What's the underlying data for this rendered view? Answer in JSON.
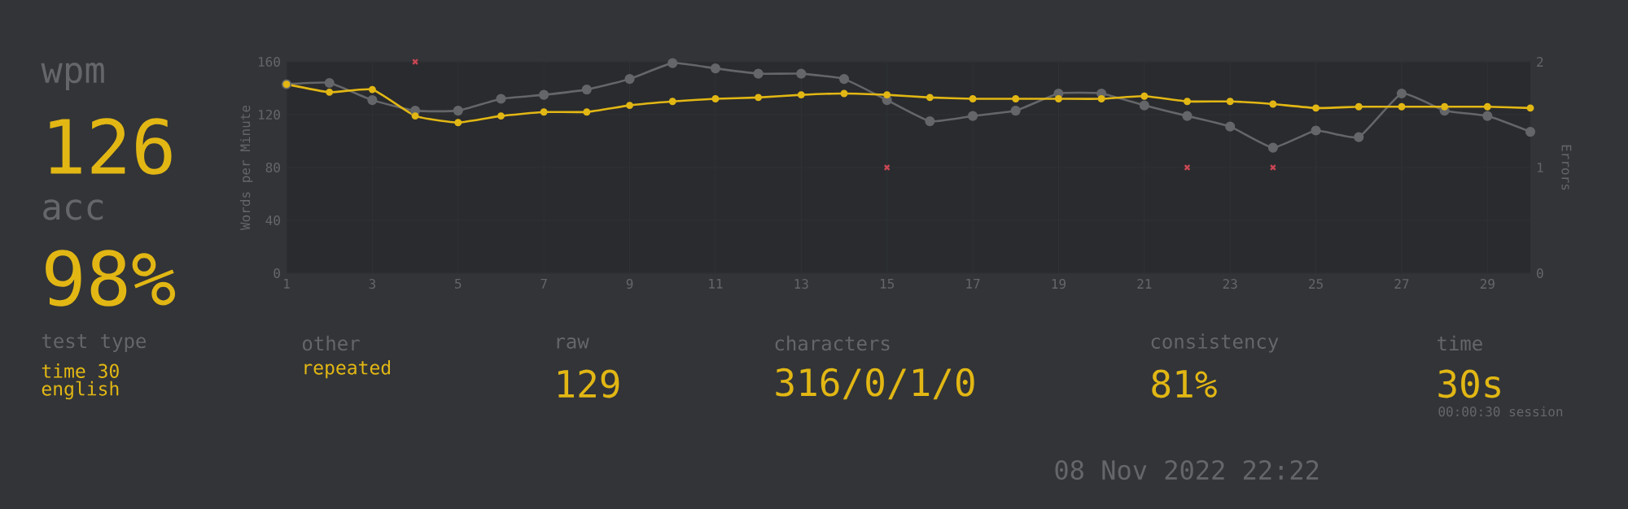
{
  "chart_data": {
    "type": "line",
    "ylabel": "Words per Minute",
    "y2label": "Errors",
    "x": [
      1,
      2,
      3,
      4,
      5,
      6,
      7,
      8,
      9,
      10,
      11,
      12,
      13,
      14,
      15,
      16,
      17,
      18,
      19,
      20,
      21,
      22,
      23,
      24,
      25,
      26,
      27,
      28,
      29,
      30
    ],
    "xlim": [
      1,
      30
    ],
    "xticks": [
      1,
      3,
      5,
      7,
      9,
      11,
      13,
      15,
      17,
      19,
      21,
      23,
      25,
      27,
      29
    ],
    "ylim": [
      0,
      160
    ],
    "yticks": [
      0,
      40,
      80,
      120,
      160
    ],
    "y2lim": [
      0,
      2
    ],
    "y2ticks": [
      0,
      1,
      2
    ],
    "grid": true,
    "marker": "circle",
    "series": [
      {
        "color": "#646669",
        "values": [
          143,
          144,
          131,
          123,
          123,
          132,
          135,
          139,
          147,
          159,
          155,
          151,
          151,
          147,
          131,
          115,
          119,
          123,
          136,
          136,
          127,
          119,
          111,
          95,
          108,
          103,
          136,
          123,
          119,
          107
        ]
      },
      {
        "color": "#e2b714",
        "values": [
          143,
          137,
          139,
          119,
          114,
          119,
          122,
          122,
          127,
          130,
          132,
          133,
          135,
          136,
          135,
          133,
          132,
          132,
          132,
          132,
          134,
          130,
          130,
          128,
          125,
          126,
          126,
          126,
          126,
          125
        ]
      },
      {
        "type": "scatter",
        "axis": "y2",
        "marker": "cross",
        "color": "#ca4754",
        "x": [
          4,
          15,
          22,
          24
        ],
        "values": [
          2,
          1,
          1,
          1
        ]
      }
    ],
    "annotations": [
      "wpm",
      "126",
      "acc",
      "98%",
      "test type",
      "time 30",
      "english",
      "other",
      "repeated",
      "raw",
      "129",
      "characters",
      "316/0/1/0",
      "consistency",
      "81%",
      "time",
      "30s",
      "00:00:30 session",
      "08 Nov 2022 22:22"
    ]
  }
}
